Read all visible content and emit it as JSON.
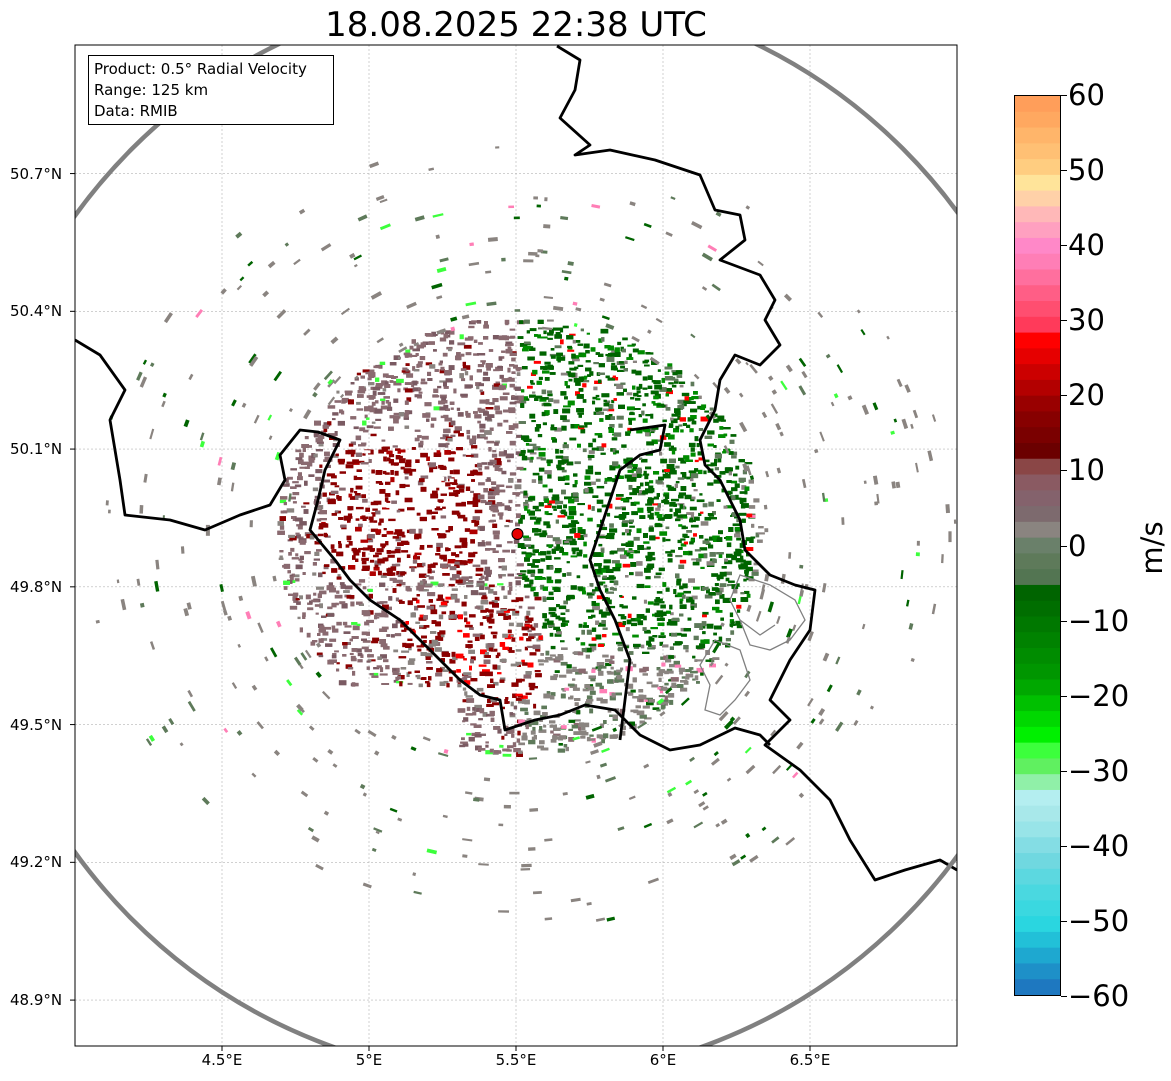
{
  "title": "18.08.2025 22:38 UTC",
  "info_box": {
    "product": "Product: 0.5° Radial Velocity",
    "range": "Range: 125 km",
    "data": "Data: RMIB"
  },
  "map": {
    "lon_range": [
      4.0,
      7.0
    ],
    "lat_range": [
      48.8,
      50.98
    ],
    "radar_site": {
      "lon": 5.505,
      "lat": 49.915
    },
    "x_ticks": [
      "4.5°E",
      "5°E",
      "5.5°E",
      "6°E",
      "6.5°E"
    ],
    "x_tick_values": [
      4.5,
      5.0,
      5.5,
      6.0,
      6.5
    ],
    "y_ticks": [
      "50.7°N",
      "50.4°N",
      "50.1°N",
      "49.8°N",
      "49.5°N",
      "49.2°N",
      "48.9°N"
    ],
    "y_tick_values": [
      50.7,
      50.4,
      50.1,
      49.8,
      49.5,
      49.2,
      48.9
    ]
  },
  "colorbar": {
    "label": "m/s",
    "min": -60,
    "max": 60,
    "ticks": [
      "60",
      "50",
      "40",
      "30",
      "20",
      "10",
      "0",
      "−10",
      "−20",
      "−30",
      "−40",
      "−50",
      "−60"
    ],
    "tick_values": [
      60,
      50,
      40,
      30,
      20,
      10,
      0,
      -10,
      -20,
      -30,
      -40,
      -50,
      -60
    ],
    "colors_top_to_bottom": [
      "#ff9e5a",
      "#ffa860",
      "#ffb56a",
      "#ffc074",
      "#ffcd80",
      "#ffe49a",
      "#ffd1a8",
      "#ffb8b8",
      "#ffa0c0",
      "#ff88c8",
      "#ff7eb6",
      "#ff6f9e",
      "#ff5e86",
      "#ff4e70",
      "#ff3a5a",
      "#ff0000",
      "#e60000",
      "#cc0000",
      "#b30000",
      "#990000",
      "#870000",
      "#7a0000",
      "#6b0000",
      "#8a4646",
      "#8a5a62",
      "#84626c",
      "#7d6a6e",
      "#8a8480",
      "#6a806a",
      "#5e7a5a",
      "#537552",
      "#006400",
      "#006e00",
      "#007800",
      "#008200",
      "#008c00",
      "#009600",
      "#00a800",
      "#00c000",
      "#00d800",
      "#00f000",
      "#3cff3c",
      "#60f060",
      "#90f0a8",
      "#b4eef0",
      "#a8e8ea",
      "#98e4e8",
      "#84dde4",
      "#70d8e0",
      "#5cd8e0",
      "#4ad8e0",
      "#3ad8e0",
      "#2ad6e0",
      "#22c0d8",
      "#1ea8d0",
      "#1e90c8",
      "#1e78c0"
    ],
    "legend_colors": {
      "outbound_strong": "#8b0000",
      "outbound_weak": "#8a6a70",
      "zero": "#8a8480",
      "inbound_weak": "#5e7a5a",
      "inbound_strong": "#006400",
      "radar_site": "#e60000"
    }
  }
}
